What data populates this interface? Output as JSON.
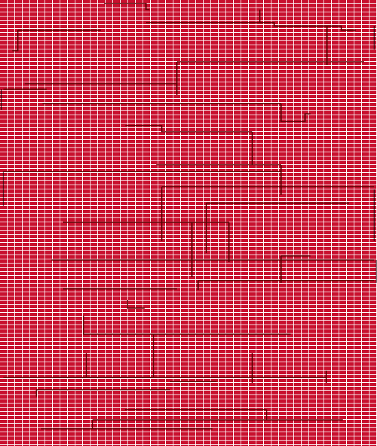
{
  "colors": {
    "background_red": "#c8102e",
    "grid_line": "#ffffff",
    "wire_dark": "#5a0000",
    "wire_black": "#000000"
  },
  "canvas": {
    "description_icon": "red-brick-grid-pattern"
  }
}
